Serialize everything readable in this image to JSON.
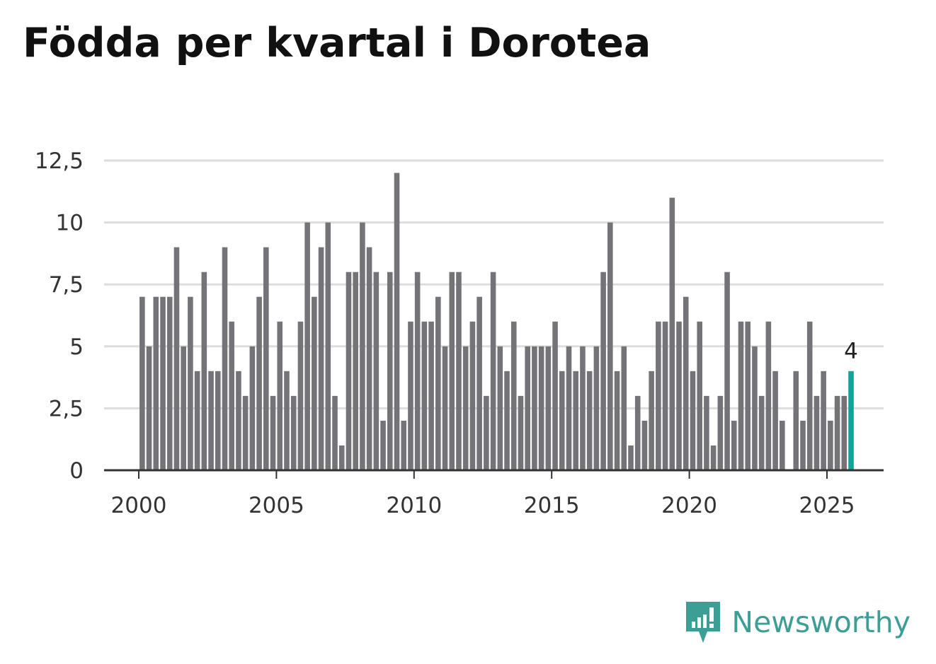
{
  "title": "Födda per kvartal i Dorotea",
  "brand": {
    "name": "Newsworthy",
    "color": "#3d9e96"
  },
  "colors": {
    "bar": "#747378",
    "highlight": "#13a19c",
    "grid": "#dddddd",
    "axis": "#333333"
  },
  "chart_data": {
    "type": "bar",
    "title": "Födda per kvartal i Dorotea",
    "xlabel": "",
    "ylabel": "",
    "start_year": 2000,
    "quarters_per_year": 4,
    "ylim": [
      0,
      12.5
    ],
    "yticks": [
      0,
      2.5,
      5,
      7.5,
      10,
      12.5
    ],
    "ytick_labels": [
      "0",
      "2,5",
      "5",
      "7,5",
      "10",
      "12,5"
    ],
    "xticks": [
      2000,
      2005,
      2010,
      2015,
      2020,
      2025
    ],
    "xtick_labels": [
      "2000",
      "2005",
      "2010",
      "2015",
      "2020",
      "2025"
    ],
    "grid": true,
    "values": [
      7,
      5,
      7,
      7,
      7,
      9,
      5,
      7,
      4,
      8,
      4,
      4,
      9,
      6,
      4,
      3,
      5,
      7,
      9,
      3,
      6,
      4,
      3,
      6,
      10,
      7,
      9,
      10,
      3,
      1,
      8,
      8,
      10,
      9,
      8,
      2,
      8,
      12,
      2,
      6,
      8,
      6,
      6,
      7,
      5,
      8,
      8,
      5,
      6,
      7,
      3,
      8,
      5,
      4,
      6,
      3,
      5,
      5,
      5,
      5,
      6,
      4,
      5,
      4,
      5,
      4,
      5,
      8,
      10,
      4,
      5,
      1,
      3,
      2,
      4,
      6,
      6,
      11,
      6,
      7,
      4,
      6,
      3,
      1,
      3,
      8,
      2,
      6,
      6,
      5,
      3,
      6,
      4,
      2,
      0,
      4,
      2,
      6,
      3,
      4,
      2,
      3,
      3,
      4
    ],
    "highlight_index": 103,
    "highlight_label": "4"
  }
}
